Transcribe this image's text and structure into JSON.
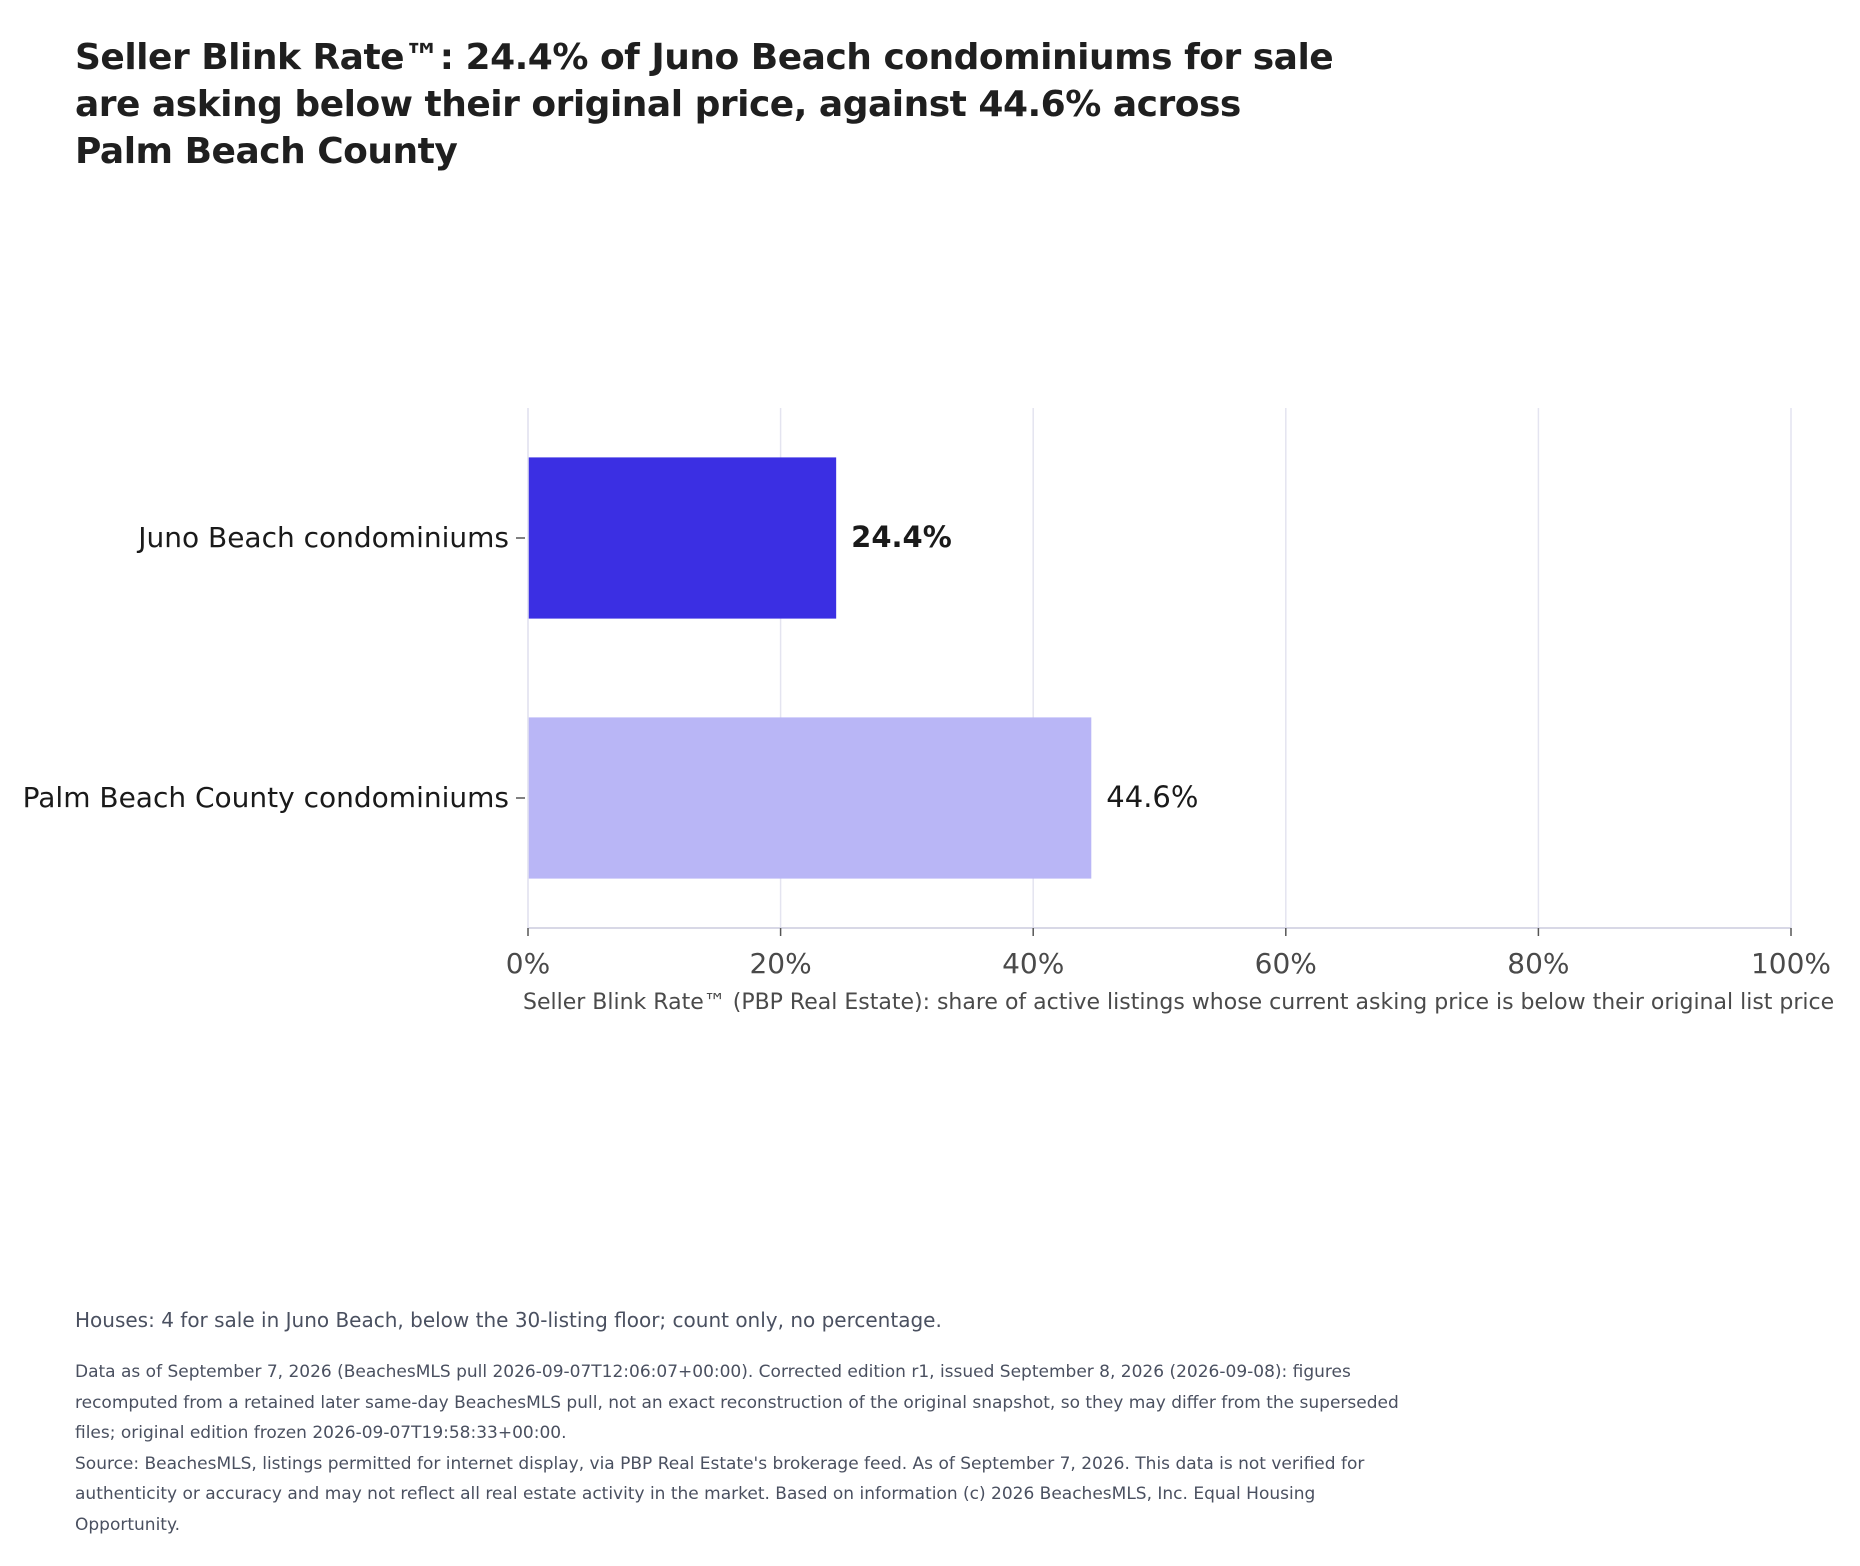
{
  "title": "Seller Blink Rate™: 24.4% of Juno Beach condominiums for sale are asking below their original price, against 44.6% across Palm Beach County",
  "chart_data": {
    "type": "bar",
    "orientation": "horizontal",
    "categories": [
      "Juno Beach condominiums",
      "Palm Beach County condominiums"
    ],
    "values": [
      24.4,
      44.6
    ],
    "value_labels": [
      "24.4%",
      "44.6%"
    ],
    "bar_colors": [
      "#3b2fe3",
      "#b9b6f6"
    ],
    "xlabel": "Seller Blink Rate™ (PBP Real Estate): share of active listings whose current asking price is below their original list price",
    "ylabel": "",
    "xlim": [
      0,
      100
    ],
    "xticks": [
      0,
      20,
      40,
      60,
      80,
      100
    ],
    "xtick_labels": [
      "0%",
      "20%",
      "40%",
      "60%",
      "80%",
      "100%"
    ],
    "grid": "vertical",
    "legend": "none"
  },
  "notes": {
    "houses": "Houses: 4 for sale in Juno Beach, below the 30-listing floor; count only, no percentage.",
    "data_as_of": "Data as of September 7, 2026 (BeachesMLS pull 2026-09-07T12:06:07+00:00). Corrected edition r1, issued September 8, 2026 (2026-09-08): figures recomputed from a retained later same-day BeachesMLS pull, not an exact reconstruction of the original snapshot, so they may differ from the superseded files; original edition frozen 2026-09-07T19:58:33+00:00.",
    "source": "Source: BeachesMLS, listings permitted for internet display, via PBP Real Estate's brokerage feed. As of September 7, 2026. This data is not verified for authenticity or accuracy and may not reflect all real estate activity in the market. Based on information (c) 2026 BeachesMLS, Inc. Equal Housing Opportunity."
  },
  "colors": {
    "grid": "#e4e4f0",
    "axis": "#d8d8e6",
    "tick_text": "#4a4a4a",
    "category_text": "#1a1a1a",
    "note_text": "#4a5060"
  }
}
